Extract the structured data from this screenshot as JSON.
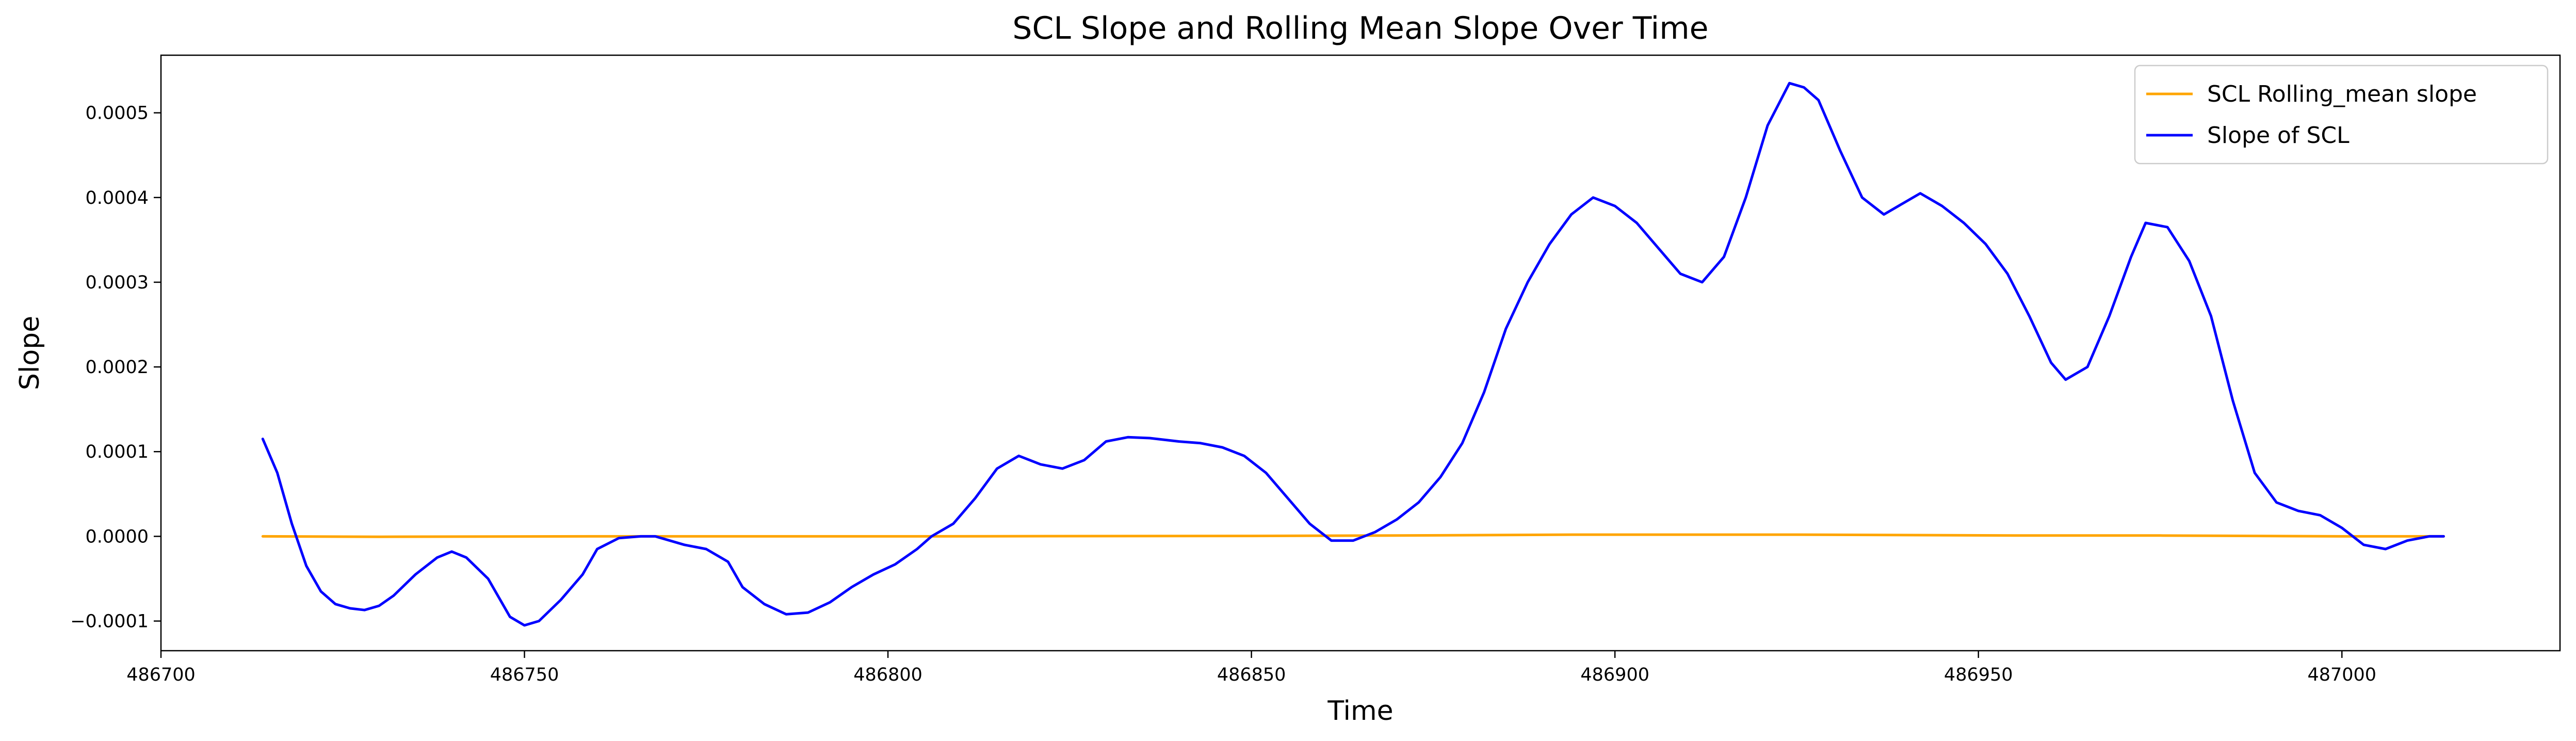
{
  "chart_data": {
    "type": "line",
    "title": "SCL Slope and Rolling Mean Slope Over Time",
    "xlabel": "Time",
    "ylabel": "Slope",
    "xlim": [
      486700,
      487030
    ],
    "ylim": [
      -0.000135,
      0.000568
    ],
    "xticks": [
      486700,
      486750,
      486800,
      486850,
      486900,
      486950,
      487000
    ],
    "xtick_labels": [
      "486700",
      "486750",
      "486800",
      "486850",
      "486900",
      "486950",
      "487000"
    ],
    "yticks": [
      -0.0001,
      0.0,
      0.0001,
      0.0002,
      0.0003,
      0.0004,
      0.0005
    ],
    "ytick_labels": [
      "−0.0001",
      "0.0000",
      "0.0001",
      "0.0002",
      "0.0003",
      "0.0004",
      "0.0005"
    ],
    "grid": false,
    "legend_position": "top-right",
    "series": [
      {
        "name": "SCL Rolling_mean slope",
        "color": "#FFA500",
        "x": [
          486714,
          486730,
          486760,
          486800,
          486850,
          486870,
          486895,
          486925,
          486955,
          486975,
          487000,
          487014
        ],
        "y": [
          0.0,
          -5e-07,
          0.0,
          0.0,
          5e-07,
          1e-06,
          2e-06,
          2e-06,
          1e-06,
          1e-06,
          0.0,
          0.0
        ]
      },
      {
        "name": "Slope of SCL",
        "color": "#0000FF",
        "x": [
          486714,
          486716,
          486718,
          486720,
          486722,
          486724,
          486726,
          486728,
          486730,
          486732,
          486735,
          486738,
          486740,
          486742,
          486745,
          486748,
          486750,
          486752,
          486755,
          486758,
          486760,
          486763,
          486766,
          486768,
          486772,
          486775,
          486778,
          486780,
          486783,
          486786,
          486789,
          486792,
          486795,
          486798,
          486801,
          486804,
          486806,
          486809,
          486812,
          486815,
          486818,
          486821,
          486824,
          486827,
          486830,
          486833,
          486836,
          486840,
          486843,
          486846,
          486849,
          486852,
          486855,
          486858,
          486861,
          486864,
          486867,
          486870,
          486873,
          486876,
          486879,
          486882,
          486885,
          486888,
          486891,
          486894,
          486897,
          486900,
          486903,
          486906,
          486909,
          486912,
          486915,
          486918,
          486921,
          486924,
          486926,
          486928,
          486931,
          486934,
          486937,
          486940,
          486942,
          486945,
          486948,
          486951,
          486954,
          486957,
          486960,
          486962,
          486965,
          486968,
          486971,
          486973,
          486976,
          486979,
          486982,
          486985,
          486988,
          486991,
          486994,
          486997,
          487000,
          487003,
          487006,
          487009,
          487012,
          487014
        ],
        "y": [
          0.000115,
          7.5e-05,
          1.5e-05,
          -3.5e-05,
          -6.5e-05,
          -8e-05,
          -8.5e-05,
          -8.7e-05,
          -8.2e-05,
          -7e-05,
          -4.5e-05,
          -2.5e-05,
          -1.8e-05,
          -2.5e-05,
          -5e-05,
          -9.5e-05,
          -0.000105,
          -0.0001,
          -7.5e-05,
          -4.5e-05,
          -1.5e-05,
          -2e-06,
          0.0,
          0.0,
          -1e-05,
          -1.5e-05,
          -3e-05,
          -6e-05,
          -8e-05,
          -9.2e-05,
          -9e-05,
          -7.8e-05,
          -6e-05,
          -4.5e-05,
          -3.3e-05,
          -1.5e-05,
          0.0,
          1.5e-05,
          4.5e-05,
          8e-05,
          9.5e-05,
          8.5e-05,
          8e-05,
          9e-05,
          0.000112,
          0.000117,
          0.000116,
          0.000112,
          0.00011,
          0.000105,
          9.5e-05,
          7.5e-05,
          4.5e-05,
          1.5e-05,
          -5e-06,
          -5e-06,
          5e-06,
          2e-05,
          4e-05,
          7e-05,
          0.00011,
          0.00017,
          0.000245,
          0.0003,
          0.000345,
          0.00038,
          0.0004,
          0.00039,
          0.00037,
          0.00034,
          0.00031,
          0.0003,
          0.00033,
          0.0004,
          0.000485,
          0.000535,
          0.00053,
          0.000515,
          0.000455,
          0.0004,
          0.00038,
          0.000395,
          0.000405,
          0.00039,
          0.00037,
          0.000345,
          0.00031,
          0.00026,
          0.000205,
          0.000185,
          0.0002,
          0.00026,
          0.00033,
          0.00037,
          0.000365,
          0.000325,
          0.00026,
          0.00016,
          7.5e-05,
          4e-05,
          3e-05,
          2.5e-05,
          1e-05,
          -1e-05,
          -1.5e-05,
          -5e-06,
          0.0,
          0.0
        ]
      }
    ]
  }
}
